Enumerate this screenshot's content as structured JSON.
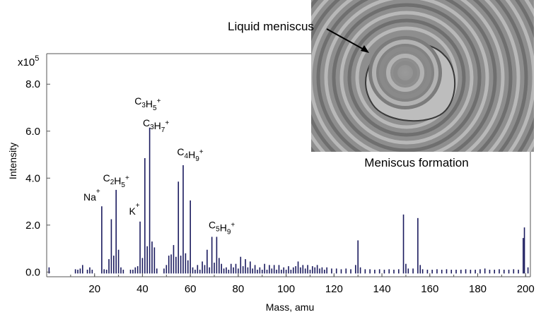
{
  "chart_data": {
    "type": "bar",
    "xlabel": "Mass, amu",
    "ylabel": "Intensity",
    "y_multiplier": "x10",
    "y_multiplier_exp": "5",
    "xlim": [
      0,
      202
    ],
    "ylim": [
      -0.2,
      9.3
    ],
    "xticks": [
      "20",
      "40",
      "60",
      "80",
      "100",
      "120",
      "140",
      "160",
      "180",
      "200"
    ],
    "yticks": [
      "0.0",
      "2.0",
      "4.0",
      "6.0",
      "8.0"
    ],
    "bar_color": "#1a1a5e",
    "points": [
      {
        "x": 1,
        "y": 0.2
      },
      {
        "x": 12,
        "y": 0.12
      },
      {
        "x": 13,
        "y": 0.1
      },
      {
        "x": 14,
        "y": 0.15
      },
      {
        "x": 15,
        "y": 0.3
      },
      {
        "x": 17,
        "y": 0.1
      },
      {
        "x": 18,
        "y": 0.2
      },
      {
        "x": 19,
        "y": 0.1
      },
      {
        "x": 23,
        "y": 2.8
      },
      {
        "x": 24,
        "y": 0.12
      },
      {
        "x": 25,
        "y": 0.1
      },
      {
        "x": 26,
        "y": 0.55
      },
      {
        "x": 27,
        "y": 2.25
      },
      {
        "x": 28,
        "y": 0.7
      },
      {
        "x": 29,
        "y": 3.5
      },
      {
        "x": 30,
        "y": 0.95
      },
      {
        "x": 31,
        "y": 0.2
      },
      {
        "x": 32,
        "y": 0.1
      },
      {
        "x": 35,
        "y": 0.1
      },
      {
        "x": 36,
        "y": 0.1
      },
      {
        "x": 37,
        "y": 0.2
      },
      {
        "x": 38,
        "y": 0.25
      },
      {
        "x": 39,
        "y": 2.15
      },
      {
        "x": 40,
        "y": 0.6
      },
      {
        "x": 41,
        "y": 4.85
      },
      {
        "x": 42,
        "y": 1.1
      },
      {
        "x": 43,
        "y": 6.15
      },
      {
        "x": 44,
        "y": 1.3
      },
      {
        "x": 45,
        "y": 1.05
      },
      {
        "x": 46,
        "y": 0.15
      },
      {
        "x": 49,
        "y": 0.15
      },
      {
        "x": 50,
        "y": 0.3
      },
      {
        "x": 51,
        "y": 0.7
      },
      {
        "x": 52,
        "y": 0.75
      },
      {
        "x": 53,
        "y": 1.15
      },
      {
        "x": 54,
        "y": 0.65
      },
      {
        "x": 55,
        "y": 3.85
      },
      {
        "x": 56,
        "y": 0.7
      },
      {
        "x": 57,
        "y": 4.55
      },
      {
        "x": 58,
        "y": 0.8
      },
      {
        "x": 59,
        "y": 0.5
      },
      {
        "x": 60,
        "y": 3.05
      },
      {
        "x": 61,
        "y": 0.2
      },
      {
        "x": 62,
        "y": 0.1
      },
      {
        "x": 63,
        "y": 0.3
      },
      {
        "x": 64,
        "y": 0.1
      },
      {
        "x": 65,
        "y": 0.45
      },
      {
        "x": 66,
        "y": 0.3
      },
      {
        "x": 67,
        "y": 0.95
      },
      {
        "x": 68,
        "y": 0.2
      },
      {
        "x": 69,
        "y": 1.5
      },
      {
        "x": 70,
        "y": 0.4
      },
      {
        "x": 71,
        "y": 1.5
      },
      {
        "x": 72,
        "y": 0.6
      },
      {
        "x": 73,
        "y": 0.35
      },
      {
        "x": 74,
        "y": 0.15
      },
      {
        "x": 75,
        "y": 0.2
      },
      {
        "x": 76,
        "y": 0.1
      },
      {
        "x": 77,
        "y": 0.35
      },
      {
        "x": 78,
        "y": 0.2
      },
      {
        "x": 79,
        "y": 0.35
      },
      {
        "x": 80,
        "y": 0.15
      },
      {
        "x": 81,
        "y": 0.65
      },
      {
        "x": 82,
        "y": 0.25
      },
      {
        "x": 83,
        "y": 0.55
      },
      {
        "x": 84,
        "y": 0.2
      },
      {
        "x": 85,
        "y": 0.45
      },
      {
        "x": 86,
        "y": 0.15
      },
      {
        "x": 87,
        "y": 0.3
      },
      {
        "x": 88,
        "y": 0.1
      },
      {
        "x": 89,
        "y": 0.2
      },
      {
        "x": 90,
        "y": 0.1
      },
      {
        "x": 91,
        "y": 0.35
      },
      {
        "x": 92,
        "y": 0.1
      },
      {
        "x": 93,
        "y": 0.3
      },
      {
        "x": 94,
        "y": 0.15
      },
      {
        "x": 95,
        "y": 0.3
      },
      {
        "x": 96,
        "y": 0.1
      },
      {
        "x": 97,
        "y": 0.3
      },
      {
        "x": 98,
        "y": 0.1
      },
      {
        "x": 99,
        "y": 0.2
      },
      {
        "x": 100,
        "y": 0.1
      },
      {
        "x": 101,
        "y": 0.25
      },
      {
        "x": 102,
        "y": 0.1
      },
      {
        "x": 103,
        "y": 0.2
      },
      {
        "x": 104,
        "y": 0.25
      },
      {
        "x": 105,
        "y": 0.45
      },
      {
        "x": 106,
        "y": 0.2
      },
      {
        "x": 107,
        "y": 0.3
      },
      {
        "x": 108,
        "y": 0.15
      },
      {
        "x": 109,
        "y": 0.3
      },
      {
        "x": 110,
        "y": 0.1
      },
      {
        "x": 111,
        "y": 0.25
      },
      {
        "x": 112,
        "y": 0.2
      },
      {
        "x": 113,
        "y": 0.3
      },
      {
        "x": 114,
        "y": 0.15
      },
      {
        "x": 115,
        "y": 0.2
      },
      {
        "x": 116,
        "y": 0.1
      },
      {
        "x": 117,
        "y": 0.2
      },
      {
        "x": 119,
        "y": 0.15
      },
      {
        "x": 121,
        "y": 0.15
      },
      {
        "x": 123,
        "y": 0.12
      },
      {
        "x": 125,
        "y": 0.15
      },
      {
        "x": 127,
        "y": 0.12
      },
      {
        "x": 129,
        "y": 0.3
      },
      {
        "x": 130,
        "y": 1.35
      },
      {
        "x": 131,
        "y": 0.2
      },
      {
        "x": 133,
        "y": 0.12
      },
      {
        "x": 135,
        "y": 0.12
      },
      {
        "x": 137,
        "y": 0.1
      },
      {
        "x": 139,
        "y": 0.12
      },
      {
        "x": 141,
        "y": 0.1
      },
      {
        "x": 143,
        "y": 0.12
      },
      {
        "x": 145,
        "y": 0.1
      },
      {
        "x": 147,
        "y": 0.12
      },
      {
        "x": 149,
        "y": 2.45
      },
      {
        "x": 150,
        "y": 0.35
      },
      {
        "x": 151,
        "y": 0.15
      },
      {
        "x": 153,
        "y": 0.15
      },
      {
        "x": 155,
        "y": 2.3
      },
      {
        "x": 156,
        "y": 0.3
      },
      {
        "x": 157,
        "y": 0.12
      },
      {
        "x": 159,
        "y": 0.1
      },
      {
        "x": 161,
        "y": 0.1
      },
      {
        "x": 163,
        "y": 0.12
      },
      {
        "x": 165,
        "y": 0.1
      },
      {
        "x": 167,
        "y": 0.12
      },
      {
        "x": 169,
        "y": 0.1
      },
      {
        "x": 171,
        "y": 0.1
      },
      {
        "x": 173,
        "y": 0.1
      },
      {
        "x": 175,
        "y": 0.12
      },
      {
        "x": 177,
        "y": 0.1
      },
      {
        "x": 179,
        "y": 0.1
      },
      {
        "x": 181,
        "y": 0.12
      },
      {
        "x": 183,
        "y": 0.15
      },
      {
        "x": 185,
        "y": 0.1
      },
      {
        "x": 187,
        "y": 0.1
      },
      {
        "x": 189,
        "y": 0.12
      },
      {
        "x": 191,
        "y": 0.1
      },
      {
        "x": 193,
        "y": 0.1
      },
      {
        "x": 195,
        "y": 0.12
      },
      {
        "x": 197,
        "y": 0.1
      },
      {
        "x": 199,
        "y": 1.45
      },
      {
        "x": 199.5,
        "y": 1.9
      },
      {
        "x": 201,
        "y": 0.2
      }
    ],
    "annotations": [
      {
        "name": "na",
        "x": 23,
        "y": 2.8,
        "parts": [
          [
            "n",
            "Na"
          ],
          [
            "sup",
            "+"
          ]
        ]
      },
      {
        "name": "c2h5",
        "x": 29,
        "y": 3.5,
        "parts": [
          [
            "n",
            "C"
          ],
          [
            "sub",
            "2"
          ],
          [
            "n",
            "H"
          ],
          [
            "sub",
            "5"
          ],
          [
            "sup",
            "+"
          ]
        ]
      },
      {
        "name": "k",
        "x": 39,
        "y": 2.15,
        "parts": [
          [
            "n",
            "K"
          ],
          [
            "sup",
            "+"
          ]
        ]
      },
      {
        "name": "c3h5",
        "x": 41,
        "y": 6.6,
        "parts": [
          [
            "n",
            "C"
          ],
          [
            "sub",
            "3"
          ],
          [
            "n",
            "H"
          ],
          [
            "sub",
            "5"
          ],
          [
            "sup",
            "+"
          ]
        ]
      },
      {
        "name": "c3h7",
        "x": 43,
        "y": 6.15,
        "parts": [
          [
            "n",
            "C"
          ],
          [
            "sub",
            "3"
          ],
          [
            "n",
            "H"
          ],
          [
            "sub",
            "7"
          ],
          [
            "sup",
            "+"
          ]
        ]
      },
      {
        "name": "c4h9",
        "x": 57,
        "y": 4.55,
        "parts": [
          [
            "n",
            "C"
          ],
          [
            "sub",
            "4"
          ],
          [
            "n",
            "H"
          ],
          [
            "sub",
            "9"
          ],
          [
            "sup",
            "+"
          ]
        ]
      },
      {
        "name": "c5h9",
        "x": 69,
        "y": 1.5,
        "parts": [
          [
            "n",
            "C"
          ],
          [
            "sub",
            "5"
          ],
          [
            "n",
            "H"
          ],
          [
            "sub",
            "9"
          ],
          [
            "sup",
            "+"
          ]
        ]
      }
    ]
  },
  "inset": {
    "pointer_label": "Liquid meniscus",
    "caption": "Meniscus formation"
  }
}
